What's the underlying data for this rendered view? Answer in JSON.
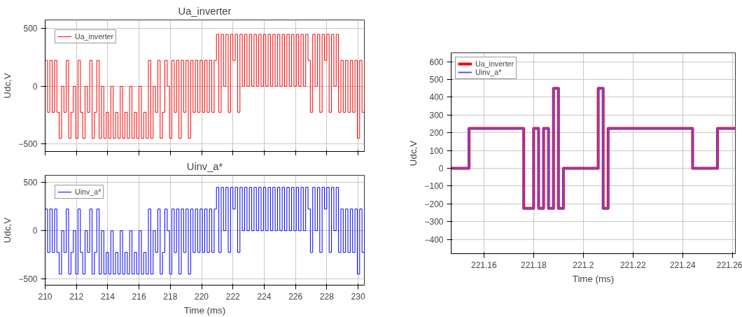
{
  "chart_data": [
    {
      "type": "step",
      "title": "Ua_inverter",
      "ylabel": "Udc,V",
      "xlim": [
        210,
        230.4
      ],
      "ylim": [
        -565,
        575
      ],
      "xticks": [
        210,
        212,
        214,
        216,
        218,
        220,
        222,
        224,
        226,
        228,
        230
      ],
      "yticks": [
        -500,
        0,
        500
      ],
      "tick_labels": "y",
      "grid": true,
      "legend": "top left",
      "x": [
        210,
        210.15,
        210.3,
        210.45,
        210.6,
        210.75,
        210.9,
        211.05,
        211.2,
        211.35,
        211.5,
        211.65,
        211.8,
        211.95,
        212.1,
        212.25,
        212.4,
        212.55,
        212.7,
        212.85,
        213,
        213.15,
        213.3,
        213.45,
        213.6,
        213.75,
        213.9,
        214.05,
        214.2,
        214.35,
        214.5,
        214.65,
        214.8,
        214.95,
        215.1,
        215.25,
        215.4,
        215.55,
        215.7,
        215.85,
        216,
        216.15,
        216.3,
        216.45,
        216.6,
        216.75,
        216.9,
        217.05,
        217.2,
        217.35,
        217.5,
        217.65,
        217.8,
        217.95,
        218.1,
        218.25,
        218.4,
        218.55,
        218.7,
        218.85,
        219,
        219.15,
        219.3,
        219.45,
        219.6,
        219.75,
        219.9,
        220.05,
        220.2,
        220.35,
        220.5,
        220.65,
        220.8,
        220.95,
        221.1,
        221.25,
        221.4,
        221.55,
        221.7,
        221.85,
        222,
        222.15,
        222.3,
        222.45,
        222.6,
        222.75,
        222.9,
        223.05,
        223.2,
        223.35,
        223.5,
        223.65,
        223.8,
        223.95,
        224.1,
        224.25,
        224.4,
        224.55,
        224.7,
        224.85,
        225,
        225.15,
        225.3,
        225.45,
        225.6,
        225.75,
        225.9,
        226.05,
        226.2,
        226.35,
        226.5,
        226.65,
        226.8,
        226.95,
        227.1,
        227.25,
        227.4,
        227.55,
        227.7,
        227.85,
        228,
        228.15,
        228.3,
        228.45,
        228.6,
        228.75,
        228.9,
        229.05,
        229.2,
        229.35,
        229.5,
        229.65,
        229.8,
        229.95,
        230.1,
        230.25,
        230.4
      ],
      "series": [
        {
          "name": "Ua_inverter",
          "color": "#ff0000",
          "values": [
            225,
            -225,
            225,
            -225,
            225,
            -225,
            -450,
            0,
            -225,
            225,
            -450,
            -225,
            0,
            -450,
            225,
            -225,
            -450,
            0,
            -225,
            225,
            -450,
            -225,
            225,
            -450,
            0,
            -450,
            -225,
            -450,
            0,
            -450,
            -225,
            -450,
            0,
            -450,
            -225,
            -450,
            0,
            -450,
            -225,
            -450,
            0,
            -450,
            -225,
            -450,
            225,
            -450,
            0,
            -225,
            225,
            -450,
            -225,
            225,
            0,
            -450,
            225,
            -225,
            225,
            -450,
            225,
            -225,
            225,
            -450,
            225,
            -225,
            225,
            -225,
            225,
            -225,
            225,
            -225,
            225,
            -225,
            225,
            450,
            -225,
            450,
            0,
            450,
            -225,
            450,
            225,
            450,
            -225,
            450,
            0,
            450,
            0,
            450,
            0,
            450,
            0,
            450,
            0,
            450,
            0,
            450,
            0,
            450,
            0,
            450,
            0,
            450,
            0,
            450,
            0,
            450,
            0,
            450,
            0,
            450,
            0,
            450,
            225,
            -225,
            450,
            0,
            450,
            -225,
            450,
            225,
            450,
            -225,
            450,
            0,
            450,
            -225,
            225,
            -225,
            225,
            -225,
            225,
            -225,
            225,
            -450,
            225,
            -225,
            225
          ]
        }
      ]
    },
    {
      "type": "step",
      "title": "Uinv_a*",
      "xlabel": "Time (ms)",
      "ylabel": "Udc,V",
      "xlim": [
        210,
        230.4
      ],
      "ylim": [
        -565,
        575
      ],
      "xticks": [
        210,
        212,
        214,
        216,
        218,
        220,
        222,
        224,
        226,
        228,
        230
      ],
      "yticks": [
        -500,
        0,
        500
      ],
      "grid": true,
      "legend": "top left",
      "x": [
        210,
        210.15,
        210.3,
        210.45,
        210.6,
        210.75,
        210.9,
        211.05,
        211.2,
        211.35,
        211.5,
        211.65,
        211.8,
        211.95,
        212.1,
        212.25,
        212.4,
        212.55,
        212.7,
        212.85,
        213,
        213.15,
        213.3,
        213.45,
        213.6,
        213.75,
        213.9,
        214.05,
        214.2,
        214.35,
        214.5,
        214.65,
        214.8,
        214.95,
        215.1,
        215.25,
        215.4,
        215.55,
        215.7,
        215.85,
        216,
        216.15,
        216.3,
        216.45,
        216.6,
        216.75,
        216.9,
        217.05,
        217.2,
        217.35,
        217.5,
        217.65,
        217.8,
        217.95,
        218.1,
        218.25,
        218.4,
        218.55,
        218.7,
        218.85,
        219,
        219.15,
        219.3,
        219.45,
        219.6,
        219.75,
        219.9,
        220.05,
        220.2,
        220.35,
        220.5,
        220.65,
        220.8,
        220.95,
        221.1,
        221.25,
        221.4,
        221.55,
        221.7,
        221.85,
        222,
        222.15,
        222.3,
        222.45,
        222.6,
        222.75,
        222.9,
        223.05,
        223.2,
        223.35,
        223.5,
        223.65,
        223.8,
        223.95,
        224.1,
        224.25,
        224.4,
        224.55,
        224.7,
        224.85,
        225,
        225.15,
        225.3,
        225.45,
        225.6,
        225.75,
        225.9,
        226.05,
        226.2,
        226.35,
        226.5,
        226.65,
        226.8,
        226.95,
        227.1,
        227.25,
        227.4,
        227.55,
        227.7,
        227.85,
        228,
        228.15,
        228.3,
        228.45,
        228.6,
        228.75,
        228.9,
        229.05,
        229.2,
        229.35,
        229.5,
        229.65,
        229.8,
        229.95,
        230.1,
        230.25,
        230.4
      ],
      "series": [
        {
          "name": "Uinv_a*",
          "color": "#0000ff",
          "values": [
            225,
            -225,
            225,
            -225,
            225,
            -225,
            -450,
            0,
            -225,
            225,
            -450,
            -225,
            0,
            -450,
            225,
            -225,
            -450,
            0,
            -225,
            225,
            -450,
            -225,
            225,
            -450,
            0,
            -450,
            -225,
            -450,
            0,
            -450,
            -225,
            -450,
            0,
            -450,
            -225,
            -450,
            0,
            -450,
            -225,
            -450,
            0,
            -450,
            -225,
            -450,
            225,
            -450,
            0,
            -225,
            225,
            -450,
            -225,
            225,
            0,
            -450,
            225,
            -225,
            225,
            -450,
            225,
            -225,
            225,
            -450,
            225,
            -225,
            225,
            -225,
            225,
            -225,
            225,
            -225,
            225,
            -225,
            225,
            450,
            -225,
            450,
            0,
            450,
            -225,
            450,
            225,
            450,
            -225,
            450,
            0,
            450,
            0,
            450,
            0,
            450,
            0,
            450,
            0,
            450,
            0,
            450,
            0,
            450,
            0,
            450,
            0,
            450,
            0,
            450,
            0,
            450,
            0,
            450,
            0,
            450,
            0,
            450,
            225,
            -225,
            450,
            0,
            450,
            -225,
            450,
            225,
            450,
            -225,
            450,
            0,
            450,
            -225,
            225,
            -225,
            225,
            -225,
            225,
            -225,
            225,
            -450,
            225,
            -225,
            225
          ]
        }
      ]
    },
    {
      "type": "step",
      "xlabel": "Time (ms)",
      "ylabel": "Udc,V",
      "xlim": [
        221.1468,
        221.2612
      ],
      "ylim": [
        -480,
        650
      ],
      "xticks": [
        221.16,
        221.18,
        {
          "value": 221.2,
          "label": "221.2"
        },
        221.22,
        221.24,
        221.26
      ],
      "yticks": [
        -400,
        -300,
        -200,
        -100,
        0,
        100,
        200,
        300,
        400,
        500,
        600
      ],
      "grid": true,
      "legend": "top left",
      "x": [
        221.1468,
        221.154,
        221.176,
        221.18,
        221.182,
        221.184,
        221.186,
        221.188,
        221.19,
        221.192,
        221.206,
        221.208,
        221.21,
        221.244,
        221.254,
        221.2612
      ],
      "series": [
        {
          "name": "Ua_inverter",
          "color": "#ff0000",
          "values": [
            0,
            225,
            -225,
            225,
            -225,
            225,
            -225,
            450,
            -225,
            0,
            450,
            -225,
            225,
            0,
            225,
            225
          ]
        },
        {
          "name": "Uinv_a*",
          "color": "#5a50ff",
          "values": [
            0,
            225,
            -225,
            225,
            -225,
            225,
            -225,
            450,
            -225,
            0,
            450,
            -225,
            225,
            0,
            225,
            225
          ]
        }
      ]
    }
  ]
}
